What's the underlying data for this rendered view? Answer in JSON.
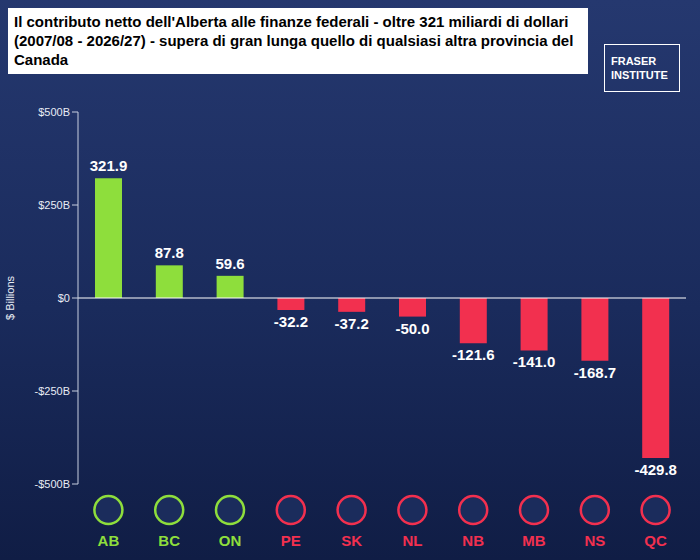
{
  "chart_data": {
    "type": "bar",
    "title": "Il contributo netto dell'Alberta alle finanze federali - oltre 321 miliardi di dollari (2007/08 - 2026/27) - supera di gran lunga quello di qualsiasi altra provincia del Canada",
    "y_label": "$ Billions",
    "annotations": [
      "FRASER",
      "INSTITUTE"
    ],
    "categories": [
      "AB",
      "BC",
      "ON",
      "PE",
      "SK",
      "NL",
      "NB",
      "MB",
      "NS",
      "QC"
    ],
    "values": [
      321.9,
      87.8,
      59.6,
      -32.2,
      -37.2,
      -50.0,
      -121.6,
      -141.0,
      -168.7,
      -429.8
    ],
    "value_labels": [
      "321.9",
      "87.8",
      "59.6",
      "-32.2",
      "-37.2",
      "-50.0",
      "-121.6",
      "-141.0",
      "-168.7",
      "-429.8"
    ],
    "colors": [
      "#8ede3c",
      "#8ede3c",
      "#8ede3c",
      "#f2304f",
      "#f2304f",
      "#f2304f",
      "#f2304f",
      "#f2304f",
      "#f2304f",
      "#f2304f"
    ],
    "ylim": [
      -500,
      500
    ],
    "yticks": [
      {
        "value": 500,
        "label": "$500B"
      },
      {
        "value": 250,
        "label": "$250B"
      },
      {
        "value": 0,
        "label": "$0"
      },
      {
        "value": -250,
        "label": "-$250B"
      },
      {
        "value": -500,
        "label": "-$500B"
      }
    ],
    "grid": false,
    "data_labels": true
  }
}
